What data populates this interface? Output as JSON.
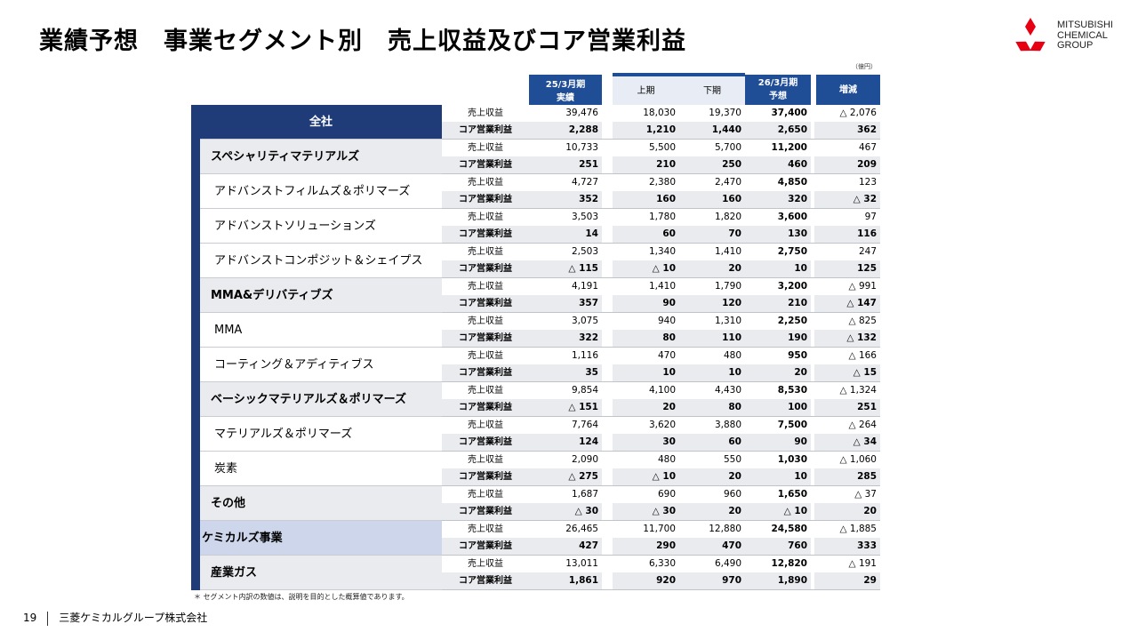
{
  "title": "業績予想　事業セグメント別　売上収益及びコア営業利益",
  "logo": {
    "lines": [
      "MITSUBISHI",
      "CHEMICAL",
      "GROUP"
    ],
    "icon": "three-diamonds-icon",
    "color": "#e60012"
  },
  "unit": "（億円）",
  "header": {
    "fy25_line1": "25/3月期",
    "fy25_line2": "実績",
    "h1": "上期",
    "h2": "下期",
    "fy26_line1": "26/3月期",
    "fy26_line2": "予想",
    "change": "増減"
  },
  "metric_labels": {
    "revenue": "売上収益",
    "core_op": "コア営業利益"
  },
  "segments": [
    {
      "name": "全社",
      "level": "top",
      "revenue": [
        "39,476",
        "18,030",
        "19,370",
        "37,400",
        "△ 2,076"
      ],
      "core_op": [
        "2,288",
        "1,210",
        "1,440",
        "2,650",
        "362"
      ]
    },
    {
      "name": "スペシャリティマテリアルズ",
      "level": "l1",
      "revenue": [
        "10,733",
        "5,500",
        "5,700",
        "11,200",
        "467"
      ],
      "core_op": [
        "251",
        "210",
        "250",
        "460",
        "209"
      ]
    },
    {
      "name": "アドバンストフィルムズ＆ポリマーズ",
      "level": "l2",
      "revenue": [
        "4,727",
        "2,380",
        "2,470",
        "4,850",
        "123"
      ],
      "core_op": [
        "352",
        "160",
        "160",
        "320",
        "△ 32"
      ]
    },
    {
      "name": "アドバンストソリューションズ",
      "level": "l2",
      "revenue": [
        "3,503",
        "1,780",
        "1,820",
        "3,600",
        "97"
      ],
      "core_op": [
        "14",
        "60",
        "70",
        "130",
        "116"
      ]
    },
    {
      "name": "アドバンストコンポジット＆シェイプス",
      "level": "l2",
      "revenue": [
        "2,503",
        "1,340",
        "1,410",
        "2,750",
        "247"
      ],
      "core_op": [
        "△ 115",
        "△ 10",
        "20",
        "10",
        "125"
      ]
    },
    {
      "name": "MMA&デリバティブズ",
      "level": "l1",
      "revenue": [
        "4,191",
        "1,410",
        "1,790",
        "3,200",
        "△ 991"
      ],
      "core_op": [
        "357",
        "90",
        "120",
        "210",
        "△ 147"
      ]
    },
    {
      "name": "MMA",
      "level": "l2",
      "revenue": [
        "3,075",
        "940",
        "1,310",
        "2,250",
        "△ 825"
      ],
      "core_op": [
        "322",
        "80",
        "110",
        "190",
        "△ 132"
      ]
    },
    {
      "name": "コーティング＆アディティブス",
      "level": "l2",
      "revenue": [
        "1,116",
        "470",
        "480",
        "950",
        "△ 166"
      ],
      "core_op": [
        "35",
        "10",
        "10",
        "20",
        "△ 15"
      ]
    },
    {
      "name": "ベーシックマテリアルズ＆ポリマーズ",
      "level": "l1",
      "revenue": [
        "9,854",
        "4,100",
        "4,430",
        "8,530",
        "△ 1,324"
      ],
      "core_op": [
        "△ 151",
        "20",
        "80",
        "100",
        "251"
      ]
    },
    {
      "name": "マテリアルズ＆ポリマーズ",
      "level": "l2",
      "revenue": [
        "7,764",
        "3,620",
        "3,880",
        "7,500",
        "△ 264"
      ],
      "core_op": [
        "124",
        "30",
        "60",
        "90",
        "△ 34"
      ]
    },
    {
      "name": "炭素",
      "level": "l2",
      "revenue": [
        "2,090",
        "480",
        "550",
        "1,030",
        "△ 1,060"
      ],
      "core_op": [
        "△ 275",
        "△ 10",
        "20",
        "10",
        "285"
      ]
    },
    {
      "name": "その他",
      "level": "l1",
      "revenue": [
        "1,687",
        "690",
        "960",
        "1,650",
        "△ 37"
      ],
      "core_op": [
        "△ 30",
        "△ 30",
        "20",
        "△ 10",
        "20"
      ]
    },
    {
      "name": "ケミカルズ事業",
      "level": "chem",
      "revenue": [
        "26,465",
        "11,700",
        "12,880",
        "24,580",
        "△ 1,885"
      ],
      "core_op": [
        "427",
        "290",
        "470",
        "760",
        "333"
      ]
    },
    {
      "name": "産業ガス",
      "level": "l1",
      "revenue": [
        "13,011",
        "6,330",
        "6,490",
        "12,820",
        "△ 191"
      ],
      "core_op": [
        "1,861",
        "920",
        "970",
        "1,890",
        "29"
      ]
    }
  ],
  "footnote": "＊ セグメント内訳の数値は、説明を目的とした概算値であります。",
  "footer": {
    "page": "19",
    "company": "三菱ケミカルグループ株式会社"
  }
}
